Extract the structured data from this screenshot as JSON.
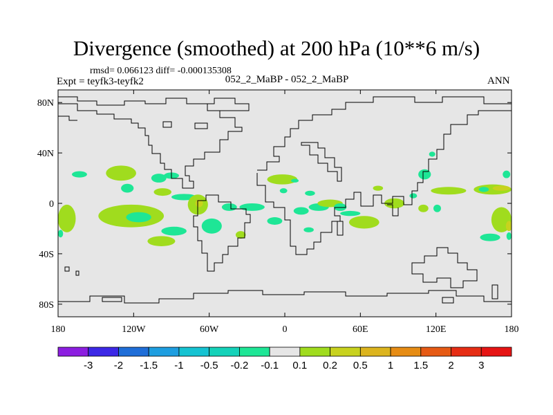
{
  "chart_data": {
    "type": "heatmap",
    "title": "Divergence (smoothed) at 200 hPa (10**6 m/s)",
    "stats_text": "rmsd= 0.066123 diff= -0.000135308",
    "experiment_label": "Expt = teyfk3-teyfk2",
    "center_label": "052_2_MaBP - 052_2_MaBP",
    "period_label": "ANN",
    "projection": "cylindrical equidistant",
    "xlim": [
      -180,
      180
    ],
    "ylim": [
      -90,
      90
    ],
    "x_ticks": [
      {
        "value": -180,
        "label": "180"
      },
      {
        "value": -120,
        "label": "120W"
      },
      {
        "value": -60,
        "label": "60W"
      },
      {
        "value": 0,
        "label": "0"
      },
      {
        "value": 60,
        "label": "60E"
      },
      {
        "value": 120,
        "label": "120E"
      },
      {
        "value": 180,
        "label": "180"
      }
    ],
    "y_ticks": [
      {
        "value": 80,
        "label": "80N"
      },
      {
        "value": 40,
        "label": "40N"
      },
      {
        "value": 0,
        "label": "0"
      },
      {
        "value": -40,
        "label": "40S"
      },
      {
        "value": -80,
        "label": "80S"
      }
    ],
    "contour_levels": [
      "-3",
      "-2",
      "-1.5",
      "-1",
      "-0.5",
      "-0.2",
      "-0.1",
      "0.1",
      "0.2",
      "0.5",
      "1",
      "1.5",
      "2",
      "3"
    ],
    "colorbar_colors": [
      "#8c1ee0",
      "#3c28e6",
      "#1f6ed8",
      "#1e9ee0",
      "#15c3d2",
      "#14d2b9",
      "#1ee696",
      "#e6e6e6",
      "#a0dc1e",
      "#c8d21e",
      "#dcb41e",
      "#e68c14",
      "#e65a14",
      "#e62d14",
      "#e61414"
    ],
    "background_color": "#e6e6e6",
    "regions": [
      {
        "level": "-0.2 to -0.1",
        "color": "#1ee696",
        "lon": -163,
        "lat": 23,
        "dlon": 6,
        "dlat": 2.5
      },
      {
        "level": "0.1 to 0.2",
        "color": "#a0dc1e",
        "lon": -130,
        "lat": 24,
        "dlon": 12,
        "dlat": 6
      },
      {
        "level": "-0.2 to -0.1",
        "color": "#1ee696",
        "lon": -100,
        "lat": 20,
        "dlon": 6,
        "dlat": 3.5
      },
      {
        "level": "-0.2 to -0.1",
        "color": "#1ee696",
        "lon": -90,
        "lat": 22,
        "dlon": 6,
        "dlat": 2.5
      },
      {
        "level": "-0.2 to -0.1",
        "color": "#1ee696",
        "lon": -125,
        "lat": 12,
        "dlon": 5,
        "dlat": 3.5
      },
      {
        "level": "0.1 to 0.2",
        "color": "#a0dc1e",
        "lon": -97,
        "lat": 9,
        "dlon": 7,
        "dlat": 3
      },
      {
        "level": "-0.2 to -0.1",
        "color": "#1ee696",
        "lon": -80,
        "lat": 5,
        "dlon": 10,
        "dlat": 2.5
      },
      {
        "level": "0.1 to 0.2",
        "color": "#a0dc1e",
        "lon": -122,
        "lat": -10,
        "dlon": 26,
        "dlat": 9
      },
      {
        "level": "-0.2 to -0.1",
        "color": "#1ee696",
        "lon": -116,
        "lat": -11,
        "dlon": 10,
        "dlat": 4
      },
      {
        "level": "0.2 to 0.5",
        "color": "#c8d21e",
        "lon": -176,
        "lat": -13,
        "dlon": 4,
        "dlat": 8
      },
      {
        "level": "0.1 to 0.2",
        "color": "#a0dc1e",
        "lon": -173,
        "lat": -12,
        "dlon": 7,
        "dlat": 11
      },
      {
        "level": "-0.2 to -0.1",
        "color": "#1ee696",
        "lon": -178,
        "lat": -24,
        "dlon": 2,
        "dlat": 3
      },
      {
        "level": "0.1 to 0.2",
        "color": "#a0dc1e",
        "lon": -69,
        "lat": -1,
        "dlon": 8,
        "dlat": 8
      },
      {
        "level": "0.2 to 0.5",
        "color": "#c8d21e",
        "lon": -68,
        "lat": 0,
        "dlon": 3,
        "dlat": 3
      },
      {
        "level": "-0.2 to -0.1",
        "color": "#1ee696",
        "lon": -44,
        "lat": -3,
        "dlon": 6,
        "dlat": 3
      },
      {
        "level": "-0.2 to -0.1",
        "color": "#1ee696",
        "lon": -26,
        "lat": -3,
        "dlon": 10,
        "dlat": 3
      },
      {
        "level": "0.1 to 0.2",
        "color": "#a0dc1e",
        "lon": -35,
        "lat": -25,
        "dlon": 4,
        "dlat": 3
      },
      {
        "level": "-0.2 to -0.1",
        "color": "#1ee696",
        "lon": -88,
        "lat": -22,
        "dlon": 10,
        "dlat": 3.5
      },
      {
        "level": "-0.2 to -0.1",
        "color": "#1ee696",
        "lon": -58,
        "lat": -18,
        "dlon": 8,
        "dlat": 6
      },
      {
        "level": "0.1 to 0.2",
        "color": "#a0dc1e",
        "lon": -98,
        "lat": -30,
        "dlon": 11,
        "dlat": 4
      },
      {
        "level": "-0.2 to -0.1",
        "color": "#1ee696",
        "lon": -8,
        "lat": -14,
        "dlon": 6,
        "dlat": 3
      },
      {
        "level": "0.1 to 0.2",
        "color": "#a0dc1e",
        "lon": -2,
        "lat": 19,
        "dlon": 12,
        "dlat": 4
      },
      {
        "level": "-0.2 to -0.1",
        "color": "#1ee696",
        "lon": 8,
        "lat": 18,
        "dlon": 3,
        "dlat": 1.5
      },
      {
        "level": "-0.2 to -0.1",
        "color": "#1ee696",
        "lon": -1,
        "lat": 10,
        "dlon": 3,
        "dlat": 2
      },
      {
        "level": "-0.2 to -0.1",
        "color": "#1ee696",
        "lon": 20,
        "lat": 8,
        "dlon": 4,
        "dlat": 2
      },
      {
        "level": "-0.2 to -0.1",
        "color": "#1ee696",
        "lon": 13,
        "lat": -6,
        "dlon": 6,
        "dlat": 3
      },
      {
        "level": "-0.2 to -0.1",
        "color": "#1ee696",
        "lon": 27,
        "lat": -3,
        "dlon": 8,
        "dlat": 3
      },
      {
        "level": "0.1 to 0.2",
        "color": "#a0dc1e",
        "lon": 36,
        "lat": 0,
        "dlon": 10,
        "dlat": 3
      },
      {
        "level": "-0.2 to -0.1",
        "color": "#1ee696",
        "lon": 44,
        "lat": -3,
        "dlon": 5,
        "dlat": 3
      },
      {
        "level": "-0.2 to -0.1",
        "color": "#1ee696",
        "lon": 19,
        "lat": -21,
        "dlon": 4,
        "dlat": 2
      },
      {
        "level": "0.1 to 0.2",
        "color": "#a0dc1e",
        "lon": 63,
        "lat": -15,
        "dlon": 12,
        "dlat": 5
      },
      {
        "level": "-0.2 to -0.1",
        "color": "#1ee696",
        "lon": 52,
        "lat": -8,
        "dlon": 8,
        "dlat": 2
      },
      {
        "level": "0.1 to 0.2",
        "color": "#a0dc1e",
        "lon": 74,
        "lat": 12,
        "dlon": 4,
        "dlat": 2
      },
      {
        "level": "0.1 to 0.2",
        "color": "#a0dc1e",
        "lon": 87,
        "lat": 0,
        "dlon": 8,
        "dlat": 4
      },
      {
        "level": "-0.2 to -0.1",
        "color": "#1ee696",
        "lon": 111,
        "lat": 23,
        "dlon": 5,
        "dlat": 4
      },
      {
        "level": "-0.2 to -0.1",
        "color": "#1ee696",
        "lon": 117,
        "lat": 39,
        "dlon": 2.5,
        "dlat": 2
      },
      {
        "level": "-0.2 to -0.1",
        "color": "#1ee696",
        "lon": 102,
        "lat": 6,
        "dlon": 3,
        "dlat": 2
      },
      {
        "level": "0.1 to 0.2",
        "color": "#a0dc1e",
        "lon": 110,
        "lat": -4,
        "dlon": 4,
        "dlat": 3
      },
      {
        "level": "-0.2 to -0.1",
        "color": "#1ee696",
        "lon": 121,
        "lat": -4,
        "dlon": 3,
        "dlat": 3
      },
      {
        "level": "0.1 to 0.2",
        "color": "#a0dc1e",
        "lon": 130,
        "lat": 10,
        "dlon": 14,
        "dlat": 3
      },
      {
        "level": "-0.2 to -0.1",
        "color": "#1ee696",
        "lon": 176,
        "lat": 23,
        "dlon": 3,
        "dlat": 3
      },
      {
        "level": "0.1 to 0.2",
        "color": "#a0dc1e",
        "lon": 165,
        "lat": 11,
        "dlon": 15,
        "dlat": 4
      },
      {
        "level": "0.2 to 0.5",
        "color": "#c8d21e",
        "lon": 172,
        "lat": 12,
        "dlon": 7,
        "dlat": 2
      },
      {
        "level": "-0.2 to -0.1",
        "color": "#1ee696",
        "lon": 158,
        "lat": 11,
        "dlon": 4,
        "dlat": 2
      },
      {
        "level": "0.1 to 0.2",
        "color": "#a0dc1e",
        "lon": 172,
        "lat": -13,
        "dlon": 8,
        "dlat": 10
      },
      {
        "level": "0.2 to 0.5",
        "color": "#c8d21e",
        "lon": 178,
        "lat": -18,
        "dlon": 2.5,
        "dlat": 4
      },
      {
        "level": "-0.2 to -0.1",
        "color": "#1ee696",
        "lon": 163,
        "lat": -27,
        "dlon": 8,
        "dlat": 3
      },
      {
        "level": "-0.2 to -0.1",
        "color": "#1ee696",
        "lon": 178,
        "lat": -26,
        "dlon": 2,
        "dlat": 3
      }
    ]
  }
}
